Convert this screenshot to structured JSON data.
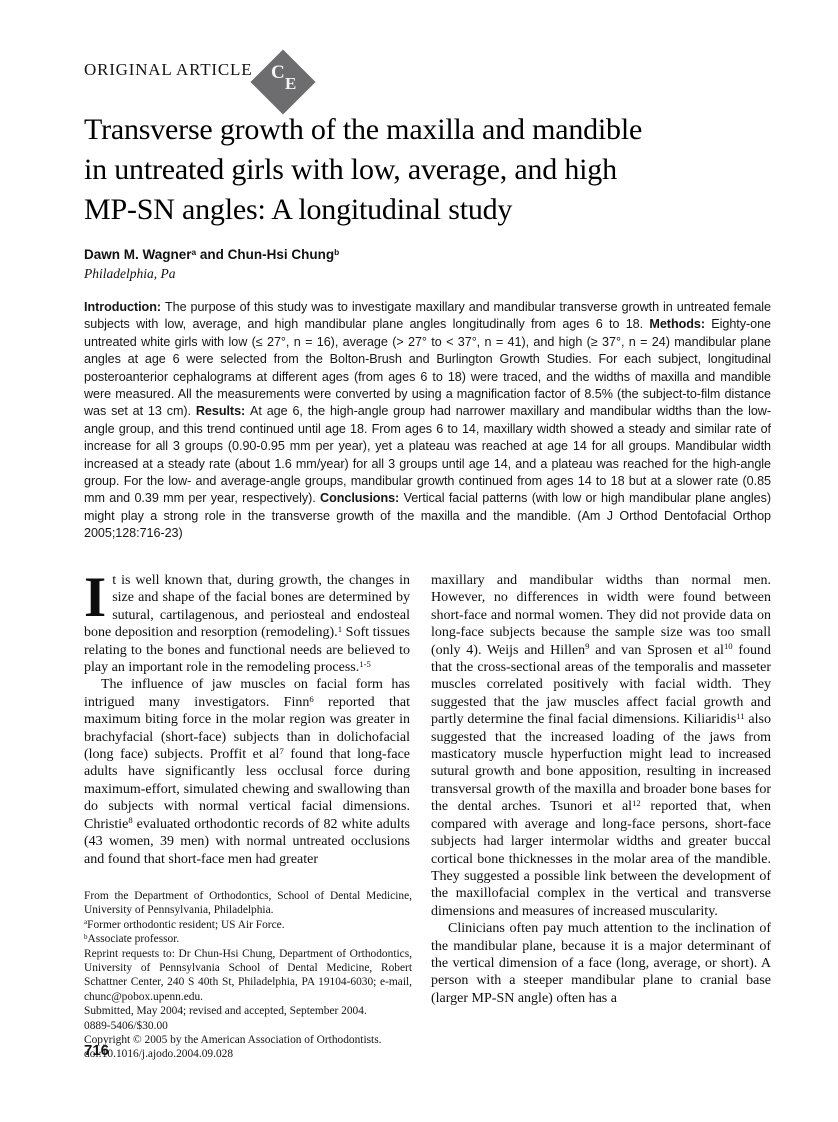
{
  "header": {
    "section_label": "ORIGINAL ARTICLE",
    "ce_badge": {
      "letters": [
        "C",
        "E"
      ],
      "color": "#6d6d70"
    }
  },
  "title": {
    "lines": [
      "Transverse growth of the maxilla and mandible",
      "in untreated girls with low, average, and high",
      "MP-SN angles: A longitudinal study"
    ]
  },
  "byline": {
    "authors": [
      {
        "t": "Dawn M. Wagner"
      },
      {
        "t": "a",
        "sup": true
      },
      {
        "t": " and Chun-Hsi Chung"
      },
      {
        "t": "b",
        "sup": true
      }
    ],
    "affiliation": "Philadelphia, Pa"
  },
  "abstract": {
    "segments": [
      {
        "t": "Introduction: ",
        "b": true
      },
      {
        "t": "The purpose of this study was to investigate maxillary and mandibular transverse growth in untreated female subjects with low, average, and high mandibular plane angles longitudinally from ages 6 to 18. "
      },
      {
        "t": "Methods: ",
        "b": true
      },
      {
        "t": "Eighty-one untreated white girls with low (≤ 27°, n = 16), average (> 27° to < 37°, n = 41), and high (≥ 37°, n = 24) mandibular plane angles at age 6 were selected from the Bolton-Brush and Burlington Growth Studies. For each subject, longitudinal posteroanterior cephalograms at different ages (from ages 6 to 18) were traced, and the widths of maxilla and mandible were measured. All the measurements were converted by using a magnification factor of 8.5% (the subject-to-film distance was set at 13 cm). "
      },
      {
        "t": "Results: ",
        "b": true
      },
      {
        "t": "At age 6, the high-angle group had narrower maxillary and mandibular widths than the low-angle group, and this trend continued until age 18. From ages 6 to 14, maxillary width showed a steady and similar rate of increase for all 3 groups (0.90-0.95 mm per year), yet a plateau was reached at age 14 for all groups. Mandibular width increased at a steady rate (about 1.6 mm/year) for all 3 groups until age 14, and a plateau was reached for the high-angle group. For the low- and average-angle groups, mandibular growth continued from ages 14 to 18 but at a slower rate (0.85 mm and 0.39 mm per year, respectively). "
      },
      {
        "t": "Conclusions: ",
        "b": true
      },
      {
        "t": "Vertical facial patterns (with low or high mandibular plane angles) might play a strong role in the transverse growth of the maxilla and the mandible. (Am J Orthod Dentofacial Orthop 2005;128:716-23)"
      }
    ]
  },
  "body": {
    "dropcap": "I",
    "left": {
      "p1": [
        {
          "t": "t is well known that, during growth, the changes in size and shape of the facial bones are determined by sutural, cartilagenous, and periosteal and endosteal bone deposition and resorption (remodeling)."
        },
        {
          "t": "1",
          "sup": true
        },
        {
          "t": " Soft tissues relating to the bones and functional needs are believed to play an important role in the remodeling process."
        },
        {
          "t": "1-5",
          "sup": true
        }
      ],
      "p2": [
        {
          "t": "The influence of jaw muscles on facial form has intrigued many investigators. Finn"
        },
        {
          "t": "6",
          "sup": true
        },
        {
          "t": " reported that maximum biting force in the molar region was greater in brachyfacial (short-face) subjects than in dolichofacial (long face) subjects. Proffit et al"
        },
        {
          "t": "7",
          "sup": true
        },
        {
          "t": " found that long-face adults have significantly less occlusal force during maximum-effort, simulated chewing and swallowing than do subjects with normal vertical facial dimensions. Christie"
        },
        {
          "t": "8",
          "sup": true
        },
        {
          "t": " evaluated orthodontic records of 82 white adults (43 women, 39 men) with normal untreated occlusions and found that short-face men had greater"
        }
      ]
    },
    "right": {
      "p1": [
        {
          "t": "maxillary and mandibular widths than normal men. However, no differences in width were found between short-face and normal women. They did not provide data on long-face subjects because the sample size was too small (only 4). Weijs and Hillen"
        },
        {
          "t": "9",
          "sup": true
        },
        {
          "t": " and van Sprosen et al"
        },
        {
          "t": "10",
          "sup": true
        },
        {
          "t": " found that the cross-sectional areas of the temporalis and masseter muscles correlated positively with facial width. They suggested that the jaw muscles affect facial growth and partly determine the final facial dimensions. Kiliaridis"
        },
        {
          "t": "11",
          "sup": true
        },
        {
          "t": " also suggested that the increased loading of the jaws from masticatory muscle hyperfuction might lead to increased sutural growth and bone apposition, resulting in increased transversal growth of the maxilla and broader bone bases for the dental arches. Tsunori et al"
        },
        {
          "t": "12",
          "sup": true
        },
        {
          "t": " reported that, when compared with average and long-face persons, short-face subjects had larger intermolar widths and greater buccal cortical bone thicknesses in the molar area of the mandible. They suggested a possible link between the development of the maxillofacial complex in the vertical and transverse dimensions and measures of increased muscularity."
        }
      ],
      "p2": [
        {
          "t": "Clinicians often pay much attention to the inclination of the mandibular plane, because it is a major determinant of the vertical dimension of a face (long, average, or short). A person with a steeper mandibular plane to cranial base (larger MP-SN angle) often has a"
        }
      ]
    }
  },
  "footnotes": {
    "lines": [
      [
        {
          "t": "From the Department of Orthodontics, School of Dental Medicine, University of Pennsylvania, Philadelphia."
        }
      ],
      [
        {
          "t": "a",
          "sup": true
        },
        {
          "t": "Former orthodontic resident; US Air Force."
        }
      ],
      [
        {
          "t": "b",
          "sup": true
        },
        {
          "t": "Associate professor."
        }
      ],
      [
        {
          "t": "Reprint requests to: Dr Chun-Hsi Chung, Department of Orthodontics, University of Pennsylvania School of Dental Medicine, Robert Schattner Center, 240 S 40th St, Philadelphia, PA 19104-6030; e-mail, chunc@pobox.upenn.edu."
        }
      ],
      [
        {
          "t": "Submitted, May 2004; revised and accepted, September 2004."
        }
      ],
      [
        {
          "t": "0889-5406/$30.00"
        }
      ],
      [
        {
          "t": "Copyright © 2005 by the American Association of Orthodontists."
        }
      ],
      [
        {
          "t": "doi:10.1016/j.ajodo.2004.09.028"
        }
      ]
    ]
  },
  "page": {
    "number": "716"
  }
}
